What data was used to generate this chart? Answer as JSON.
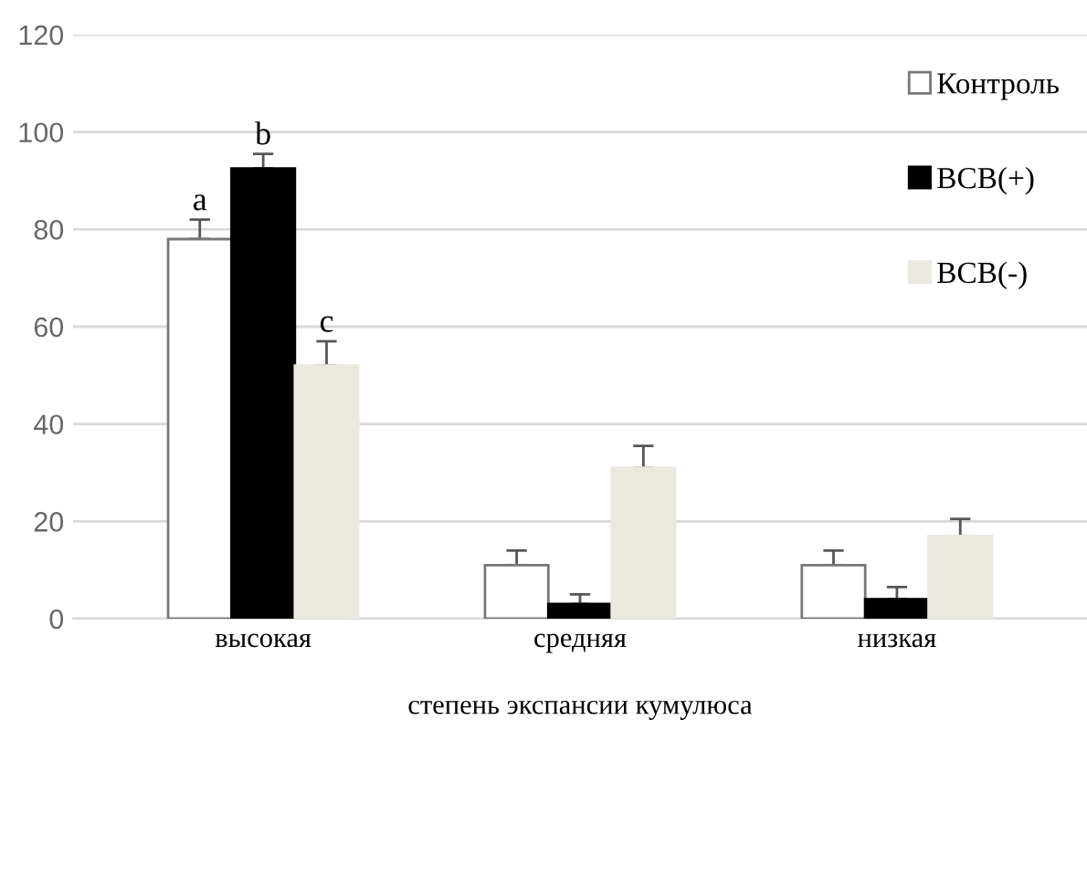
{
  "chart_data": {
    "type": "bar",
    "xlabel": "степень экспансии кумулюса",
    "categories": [
      "высокая",
      "средняя",
      "низкая"
    ],
    "series": [
      {
        "name": "Контроль",
        "color": "#ffffff",
        "values": [
          78,
          11,
          11
        ],
        "errors": [
          [
            78,
            82
          ],
          [
            11,
            14
          ],
          [
            11,
            14
          ]
        ]
      },
      {
        "name": "BCB(+)",
        "color": "#000000",
        "values": [
          92.5,
          3,
          4
        ],
        "errors": [
          [
            92.5,
            95.5
          ],
          [
            3,
            5
          ],
          [
            4,
            6.5
          ]
        ]
      },
      {
        "name": "BCB(-)",
        "color": "#ebe8df",
        "values": [
          52,
          31,
          17
        ],
        "errors": [
          [
            52,
            57
          ],
          [
            31,
            35.5
          ],
          [
            17,
            20.5
          ]
        ]
      }
    ],
    "ylim": [
      0,
      120
    ],
    "yticks": [
      0,
      20,
      40,
      60,
      80,
      100,
      120
    ],
    "grid": "y",
    "legend": "right",
    "annotations": [
      "a",
      "b",
      "c"
    ]
  }
}
